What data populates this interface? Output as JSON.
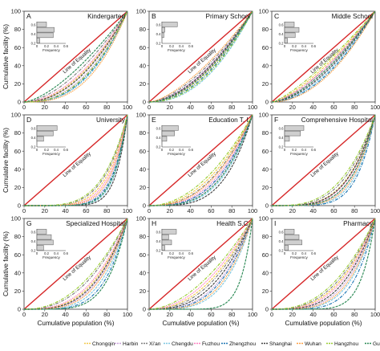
{
  "axes": {
    "ylabel": "Cumulative facility (%)",
    "xlabel": "Cumulative population (%)",
    "ticks": [
      "0",
      "20",
      "40",
      "60",
      "80",
      "100"
    ]
  },
  "inset": {
    "xlabel": "Frequency",
    "xticks": [
      "0",
      "0.2",
      "0.4",
      "0.6"
    ],
    "yticks": [
      "0.6",
      "0.4",
      "0.2"
    ]
  },
  "colors": {
    "equality_line": "#d62728",
    "axis": "#333333"
  },
  "chart_data": [
    {
      "letter": "A",
      "title": "Kindergarten",
      "type": "line",
      "xlim": [
        0,
        100
      ],
      "ylim": [
        0,
        100
      ],
      "eq_label": "Line of Equality",
      "inset_bars": [
        0.2,
        0.36,
        0.34,
        0.06
      ]
    },
    {
      "letter": "B",
      "title": "Primary School",
      "type": "line",
      "xlim": [
        0,
        100
      ],
      "ylim": [
        0,
        100
      ],
      "eq_label": "Line of Equality",
      "inset_bars": [
        0.32,
        0.06,
        0.04,
        0.0
      ]
    },
    {
      "letter": "C",
      "title": "Middle School",
      "type": "line",
      "xlim": [
        0,
        100
      ],
      "ylim": [
        0,
        100
      ],
      "eq_label": "Line of Equality",
      "inset_bars": [
        0.2,
        0.3,
        0.22,
        0.06
      ]
    },
    {
      "letter": "D",
      "title": "University",
      "type": "line",
      "xlim": [
        0,
        100
      ],
      "ylim": [
        0,
        100
      ],
      "eq_label": "Line of Equality",
      "inset_bars": [
        0.42,
        0.34,
        0.14,
        0.0
      ]
    },
    {
      "letter": "E",
      "title": "Education T. I.",
      "type": "line",
      "xlim": [
        0,
        100
      ],
      "ylim": [
        0,
        100
      ],
      "eq_label": "Line of Equality",
      "inset_bars": [
        0.34,
        0.26,
        0.1,
        0.0
      ]
    },
    {
      "letter": "F",
      "title": "Comprehensive Hospital",
      "type": "line",
      "xlim": [
        0,
        100
      ],
      "ylim": [
        0,
        100
      ],
      "eq_label": "Line of Equality",
      "inset_bars": [
        0.4,
        0.33,
        0.1,
        0.0
      ]
    },
    {
      "letter": "G",
      "title": "Specialized Hospital",
      "type": "line",
      "xlim": [
        0,
        100
      ],
      "ylim": [
        0,
        100
      ],
      "eq_label": "Line of Equality",
      "inset_bars": [
        0.2,
        0.3,
        0.34,
        0.14
      ]
    },
    {
      "letter": "H",
      "title": "Health S.C.",
      "type": "line",
      "xlim": [
        0,
        100
      ],
      "ylim": [
        0,
        100
      ],
      "eq_label": "Line of Equality",
      "inset_bars": [
        0.3,
        0.14,
        0.2,
        0.06
      ]
    },
    {
      "letter": "I",
      "title": "Pharmacy",
      "type": "line",
      "xlim": [
        0,
        100
      ],
      "ylim": [
        0,
        100
      ],
      "eq_label": "Line of Equality",
      "inset_bars": [
        0.2,
        0.3,
        0.36,
        0.08
      ]
    }
  ],
  "curves": {
    "A": [
      2.0,
      2.3,
      1.7,
      2.6,
      1.9,
      2.5,
      2.1,
      2.8,
      2.4,
      1.5
    ],
    "B": [
      1.9,
      1.7,
      1.6,
      2.2,
      1.8,
      2.0,
      1.75,
      1.5,
      2.1,
      1.85
    ],
    "C": [
      1.4,
      1.6,
      1.5,
      1.8,
      1.5,
      1.9,
      1.7,
      2.0,
      1.3,
      1.6
    ],
    "D": [
      5.0,
      6.5,
      4.5,
      8.0,
      5.5,
      7.0,
      9.0,
      6.0,
      4.2,
      7.5
    ],
    "E": [
      2.2,
      3.0,
      2.4,
      3.4,
      2.7,
      2.9,
      3.8,
      2.5,
      2.0,
      3.2
    ],
    "F": [
      3.8,
      4.5,
      3.4,
      5.2,
      4.0,
      5.8,
      3.9,
      4.8,
      3.1,
      4.4
    ],
    "G": [
      3.0,
      3.4,
      2.4,
      4.0,
      2.8,
      4.6,
      3.2,
      3.6,
      2.2,
      5.2
    ],
    "H": [
      2.2,
      3.0,
      2.4,
      3.8,
      2.0,
      3.2,
      2.7,
      3.5,
      1.8,
      9.0
    ],
    "I": [
      2.8,
      3.6,
      2.6,
      4.2,
      3.0,
      5.0,
      3.3,
      3.9,
      2.4,
      7.5
    ]
  },
  "legend": [
    {
      "name": "Chongqin",
      "color": "#f2c94c"
    },
    {
      "name": "Harbin",
      "color": "#c9a0dc"
    },
    {
      "name": "Xi'an",
      "color": "#7f7f7f"
    },
    {
      "name": "Chengdu",
      "color": "#7ec8e3"
    },
    {
      "name": "Fuzhou",
      "color": "#ff7fbf"
    },
    {
      "name": "Zhengzhou",
      "color": "#1f77b4"
    },
    {
      "name": "Shanghai",
      "color": "#444444"
    },
    {
      "name": "Wuhan",
      "color": "#ff9f40"
    },
    {
      "name": "Hangzhou",
      "color": "#9acd32"
    },
    {
      "name": "Guangzhou",
      "color": "#2e8b57"
    }
  ]
}
